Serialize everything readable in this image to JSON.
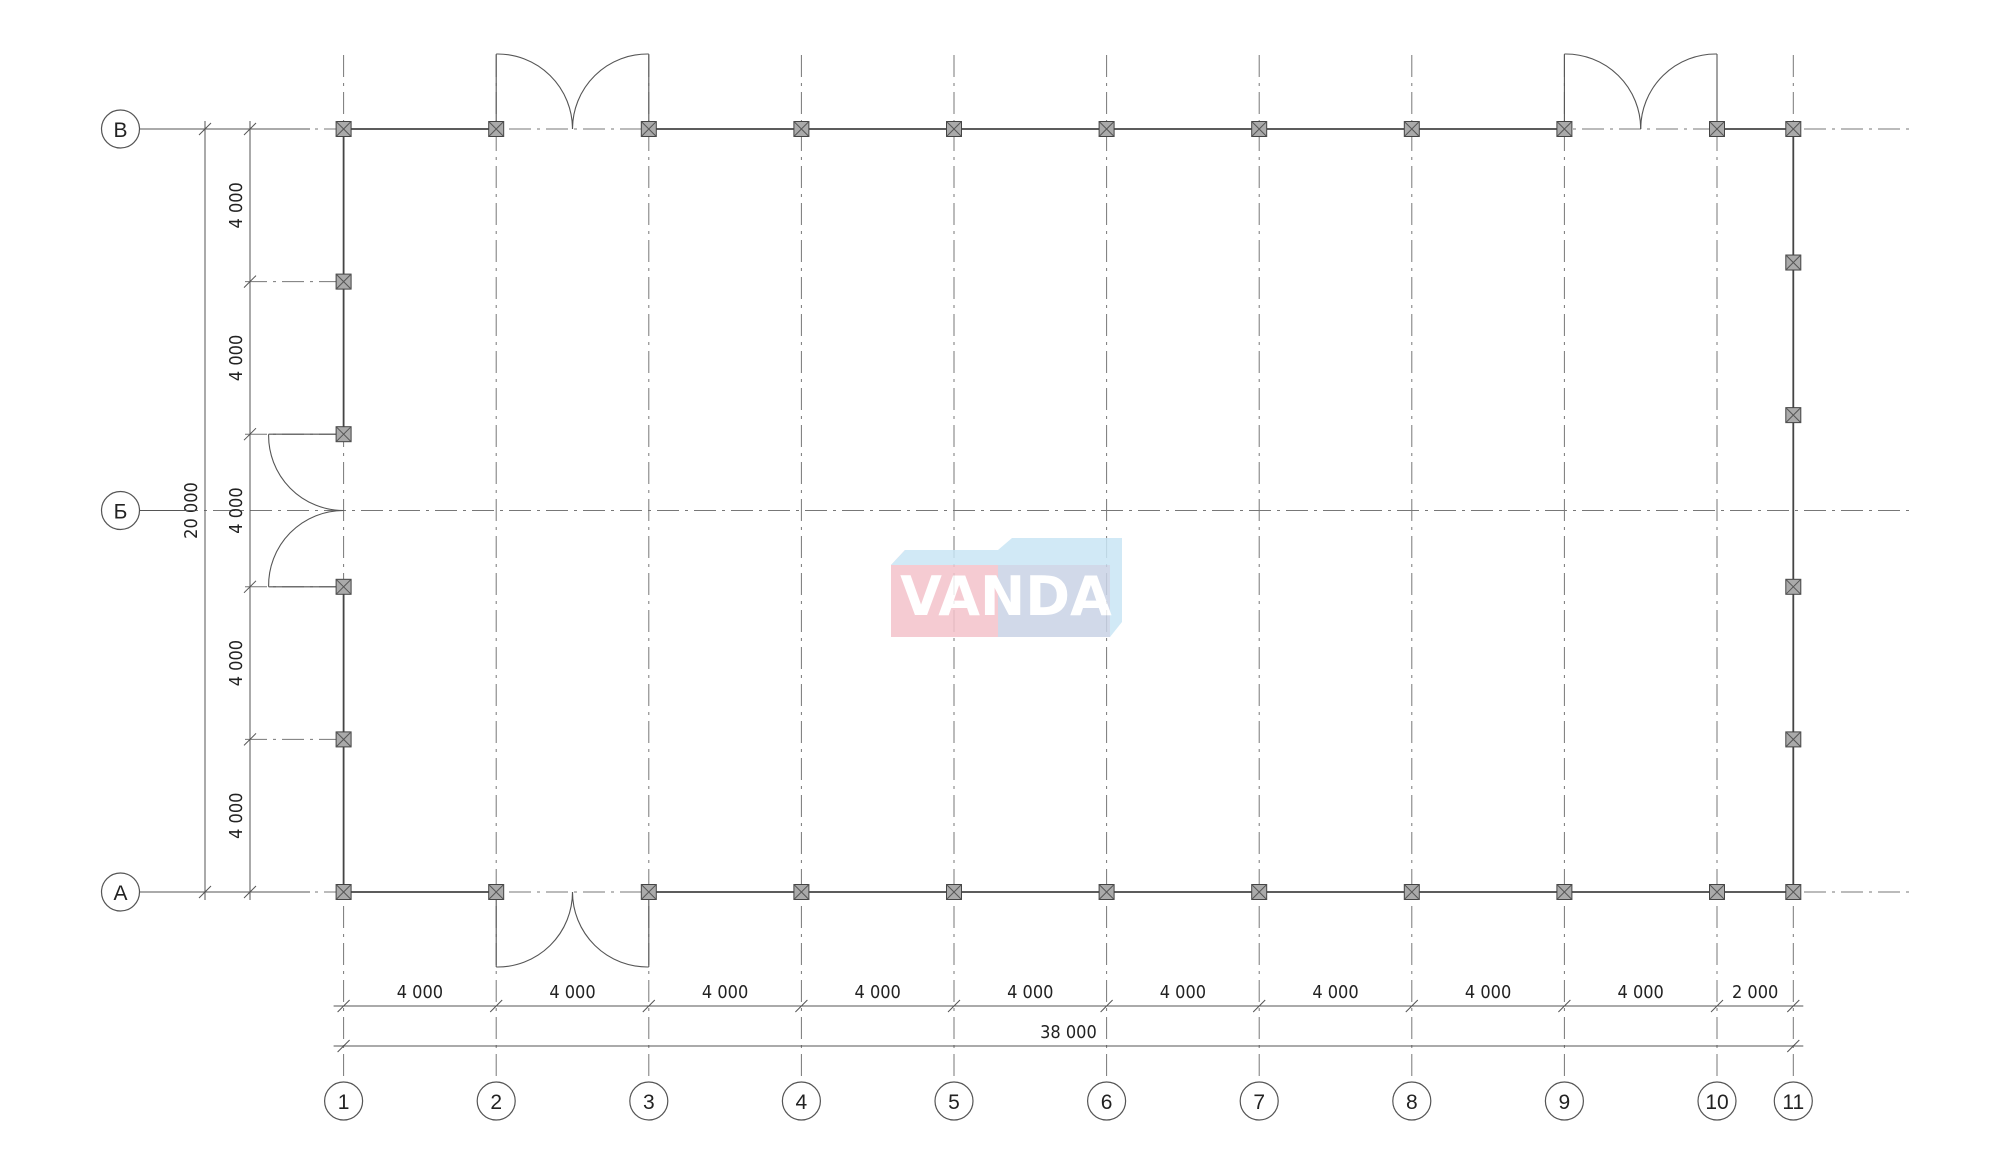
{
  "plan": {
    "column_axes": [
      "1",
      "2",
      "3",
      "4",
      "5",
      "6",
      "7",
      "8",
      "9",
      "10",
      "11"
    ],
    "column_spacings_mm": [
      4000,
      4000,
      4000,
      4000,
      4000,
      4000,
      4000,
      4000,
      4000,
      2000
    ],
    "column_dim_labels": [
      "4 000",
      "4 000",
      "4 000",
      "4 000",
      "4 000",
      "4 000",
      "4 000",
      "4 000",
      "4 000",
      "2 000"
    ],
    "total_length_label": "38 000",
    "row_axes": [
      "А",
      "Б",
      "В"
    ],
    "row_positions_mm": [
      0,
      10000,
      20000
    ],
    "row_dim_labels": [
      "4 000",
      "4 000",
      "4 000",
      "4 000",
      "4 000"
    ],
    "total_width_label": "20 000",
    "left_wall_posts_mm": [
      4000,
      8000,
      12000,
      16000
    ],
    "right_wall_posts_mm": [
      4000,
      8000,
      12500,
      16500
    ],
    "doors": [
      {
        "wall": "В",
        "between": [
          "2",
          "3"
        ]
      },
      {
        "wall": "В",
        "between": [
          "9",
          "10"
        ]
      },
      {
        "wall": "А",
        "between": [
          "2",
          "3"
        ]
      },
      {
        "wall": "1",
        "between_mm": [
          8000,
          12000
        ]
      }
    ]
  },
  "watermark": {
    "text": "VANDA",
    "colors": {
      "pink": "#f4c3cb",
      "blue": "#c9e6f5",
      "overlap": "#c9d3e6"
    }
  }
}
